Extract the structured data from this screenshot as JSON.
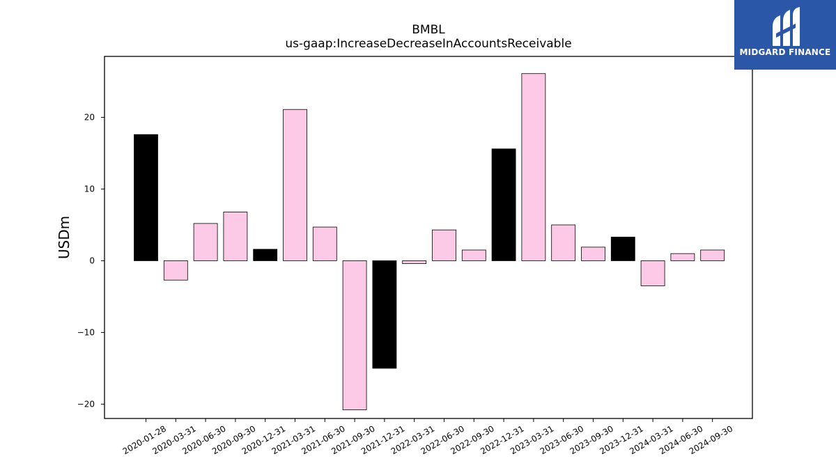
{
  "chart_data": {
    "type": "bar",
    "title": "BMBL",
    "subtitle": "us-gaap:IncreaseDecreaseInAccountsReceivable",
    "ylabel": "USDm",
    "ylim": [
      -22,
      28.5
    ],
    "yticks": [
      -20,
      -10,
      0,
      10,
      20
    ],
    "categories": [
      "2020-01-28",
      "2020-03-31",
      "2020-06-30",
      "2020-09-30",
      "2020-12-31",
      "2021-03-31",
      "2021-06-30",
      "2021-09-30",
      "2021-12-31",
      "2022-03-31",
      "2022-06-30",
      "2022-09-30",
      "2022-12-31",
      "2023-03-31",
      "2023-06-30",
      "2023-09-30",
      "2023-12-31",
      "2024-03-31",
      "2024-06-30",
      "2024-09-30"
    ],
    "values": [
      17.6,
      -2.7,
      5.2,
      6.8,
      1.6,
      21.1,
      4.7,
      -20.8,
      -15.0,
      -0.4,
      4.3,
      1.5,
      15.6,
      26.1,
      5.0,
      1.9,
      3.3,
      -3.5,
      1.0,
      1.5
    ],
    "bar_colors": [
      "#000000",
      "#fccae6",
      "#fccae6",
      "#fccae6",
      "#000000",
      "#fccae6",
      "#fccae6",
      "#fccae6",
      "#000000",
      "#fccae6",
      "#fccae6",
      "#fccae6",
      "#000000",
      "#fccae6",
      "#fccae6",
      "#fccae6",
      "#000000",
      "#fccae6",
      "#fccae6",
      "#fccae6"
    ]
  },
  "logo": {
    "text": "MIDGARD FINANCE",
    "background": "#2b57a8"
  }
}
